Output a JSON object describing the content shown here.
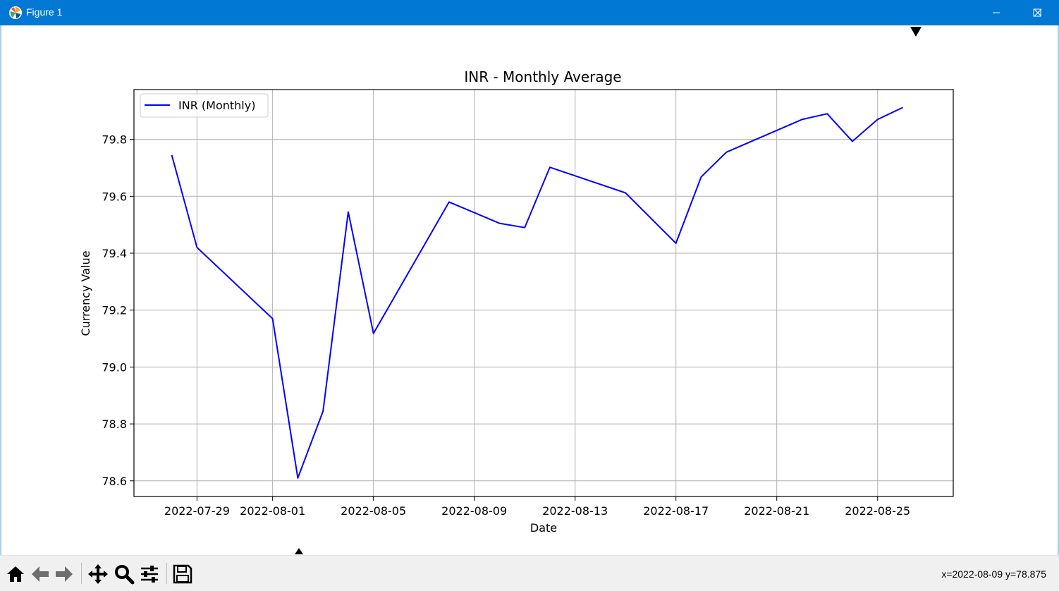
{
  "window": {
    "title": "Figure 1",
    "icons": {
      "app": "matplotlib-logo-icon",
      "minimize": "minimize-icon",
      "maximize": "maximize-icon",
      "close": "close-icon"
    }
  },
  "toolbar": {
    "buttons": [
      "home-icon",
      "back-arrow-icon",
      "forward-arrow-icon",
      "pan-move-icon",
      "zoom-magnifier-icon",
      "configure-subplots-icon",
      "save-floppy-icon"
    ],
    "coords": "x=2022-08-09 y=78.875"
  },
  "chart_data": {
    "type": "line",
    "title": "INR - Monthly Average",
    "xlabel": "Date",
    "ylabel": "Currency Value",
    "x_ticks": [
      "2022-07-29",
      "2022-08-01",
      "2022-08-05",
      "2022-08-09",
      "2022-08-13",
      "2022-08-17",
      "2022-08-21",
      "2022-08-25"
    ],
    "y_ticks": [
      78.6,
      78.8,
      79.0,
      79.2,
      79.4,
      79.6,
      79.8
    ],
    "ylim": [
      78.545,
      79.975
    ],
    "xlim": [
      "2022-07-26T12:00",
      "2022-08-28"
    ],
    "grid": true,
    "legend_position": "upper-left",
    "series": [
      {
        "name": "INR (Monthly)",
        "color": "#0000ff",
        "points": [
          {
            "x": "2022-07-28",
            "y": 79.745
          },
          {
            "x": "2022-07-29",
            "y": 79.42
          },
          {
            "x": "2022-08-01",
            "y": 79.17
          },
          {
            "x": "2022-08-02",
            "y": 78.61
          },
          {
            "x": "2022-08-03",
            "y": 78.845
          },
          {
            "x": "2022-08-04",
            "y": 79.545
          },
          {
            "x": "2022-08-05",
            "y": 79.118
          },
          {
            "x": "2022-08-08",
            "y": 79.58
          },
          {
            "x": "2022-08-10",
            "y": 79.505
          },
          {
            "x": "2022-08-11",
            "y": 79.49
          },
          {
            "x": "2022-08-12",
            "y": 79.702
          },
          {
            "x": "2022-08-15",
            "y": 79.612
          },
          {
            "x": "2022-08-17",
            "y": 79.435
          },
          {
            "x": "2022-08-18",
            "y": 79.668
          },
          {
            "x": "2022-08-19",
            "y": 79.755
          },
          {
            "x": "2022-08-22",
            "y": 79.87
          },
          {
            "x": "2022-08-23",
            "y": 79.89
          },
          {
            "x": "2022-08-24",
            "y": 79.793
          },
          {
            "x": "2022-08-25",
            "y": 79.87
          },
          {
            "x": "2022-08-26",
            "y": 79.912
          }
        ]
      }
    ]
  }
}
